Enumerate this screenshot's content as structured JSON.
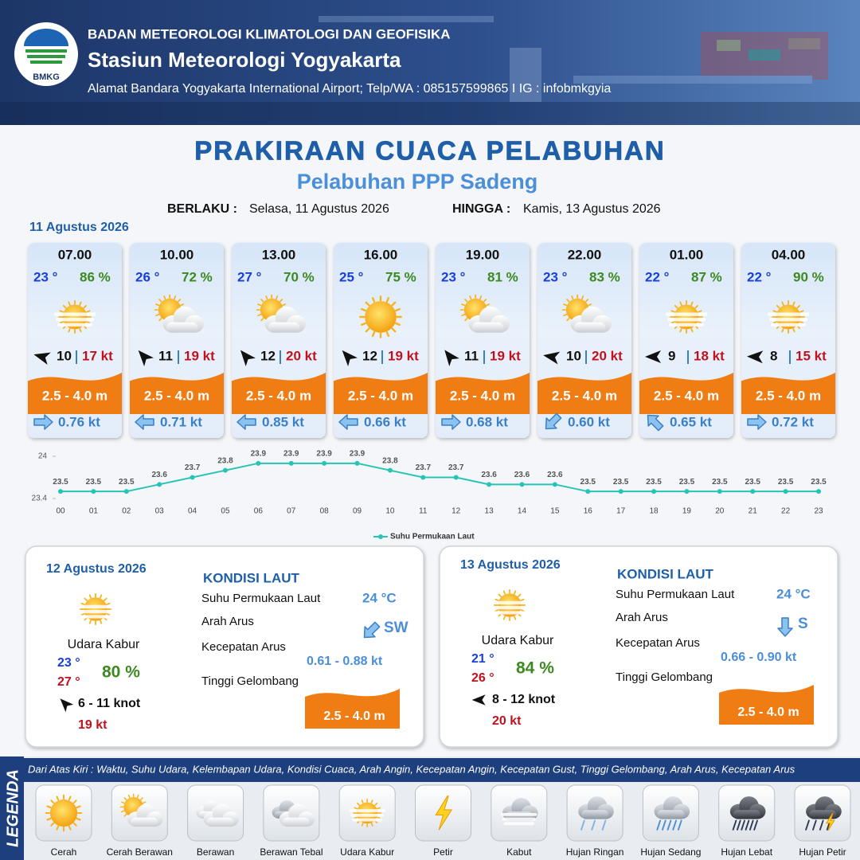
{
  "header": {
    "logo": "BMKG",
    "agency": "BADAN METEOROLOGI KLIMATOLOGI DAN GEOFISIKA",
    "station": "Stasiun Meteorologi Yogyakarta",
    "address": "Alamat Bandara Yogyakarta International Airport; Telp/WA : 085157599865 I IG : infobmkgyia"
  },
  "title": "PRAKIRAAN CUACA PELABUHAN",
  "subtitle": "Pelabuhan PPP Sadeng",
  "validity": {
    "from_label": "BERLAKU :",
    "from": "Selasa, 11 Agustus 2026",
    "to_label": "HINGGA :",
    "to": "Kamis, 13 Agustus 2026"
  },
  "day1": {
    "date": "11 Agustus 2026",
    "forecasts": [
      {
        "time": "07.00",
        "temperature": "23 °",
        "humidity": "86 %",
        "condition": "Udara Kabur",
        "wind_speed": 10,
        "gust": "17 kt",
        "wave": "2.5 - 4.0 m",
        "current": "0.76 kt"
      },
      {
        "time": "10.00",
        "temperature": "26 °",
        "humidity": "72 %",
        "condition": "Cerah Berawan",
        "wind_speed": 11,
        "gust": "19 kt",
        "wave": "2.5 - 4.0 m",
        "current": "0.71 kt"
      },
      {
        "time": "13.00",
        "temperature": "27 °",
        "humidity": "70 %",
        "condition": "Cerah Berawan",
        "wind_speed": 12,
        "gust": "20 kt",
        "wave": "2.5 - 4.0 m",
        "current": "0.85 kt"
      },
      {
        "time": "16.00",
        "temperature": "25 °",
        "humidity": "75 %",
        "condition": "Cerah",
        "wind_speed": 12,
        "gust": "19 kt",
        "wave": "2.5 - 4.0 m",
        "current": "0.66 kt"
      },
      {
        "time": "19.00",
        "temperature": "23 °",
        "humidity": "81 %",
        "condition": "Cerah Berawan",
        "wind_speed": 11,
        "gust": "19 kt",
        "wave": "2.5 - 4.0 m",
        "current": "0.68 kt"
      },
      {
        "time": "22.00",
        "temperature": "23 °",
        "humidity": "83 %",
        "condition": "Cerah Berawan",
        "wind_speed": 10,
        "gust": "20 kt",
        "wave": "2.5 - 4.0 m",
        "current": "0.60 kt"
      },
      {
        "time": "01.00",
        "temperature": "22 °",
        "humidity": "87 %",
        "condition": "Udara Kabur",
        "wind_speed": 9,
        "gust": "18 kt",
        "wave": "2.5 - 4.0 m",
        "current": "0.65 kt"
      },
      {
        "time": "04.00",
        "temperature": "22 °",
        "humidity": "90 %",
        "condition": "Udara Kabur",
        "wind_speed": 8,
        "gust": "15 kt",
        "wave": "2.5 - 4.0 m",
        "current": "0.72 kt"
      }
    ]
  },
  "chart_data": {
    "type": "line",
    "categories": [
      "00",
      "01",
      "02",
      "03",
      "04",
      "05",
      "06",
      "07",
      "08",
      "09",
      "10",
      "11",
      "12",
      "13",
      "14",
      "15",
      "16",
      "17",
      "18",
      "19",
      "20",
      "21",
      "22",
      "23"
    ],
    "series": [
      {
        "name": "Suhu Permukaan Laut",
        "color": "#27c4b5",
        "values": [
          23.5,
          23.5,
          23.5,
          23.6,
          23.7,
          23.8,
          23.9,
          23.9,
          23.9,
          23.9,
          23.8,
          23.7,
          23.7,
          23.6,
          23.6,
          23.6,
          23.5,
          23.5,
          23.5,
          23.5,
          23.5,
          23.5,
          23.5,
          23.5
        ]
      }
    ],
    "ylim": [
      23.4,
      24
    ],
    "yticks": [
      23.4,
      24
    ],
    "legend": "bottom"
  },
  "outlook": [
    {
      "date": "12 Agustus 2026",
      "condition": "Udara Kabur",
      "temp_min": "23 °",
      "temp_max": "27 °",
      "humidity": "80 %",
      "wind": "6  - 11 knot",
      "gust": "19 kt",
      "sea": {
        "heading": "KONDISI LAUT",
        "labels": [
          "Suhu Permukaan Laut",
          "Arah Arus",
          "Kecepatan Arus",
          "Tinggi Gelombang"
        ],
        "temperature": "24 °C",
        "current_direction": "SW",
        "current_speed": "0.61 - 0.88 kt",
        "wave": "2.5 - 4.0 m"
      }
    },
    {
      "date": "13 Agustus 2026",
      "condition": "Udara Kabur",
      "temp_min": "21 °",
      "temp_max": "26 °",
      "humidity": "84 %",
      "wind": "8 - 12 knot",
      "gust": "20 kt",
      "sea": {
        "heading": "KONDISI LAUT",
        "labels": [
          "Suhu Permukaan Laut",
          "Arah Arus",
          "Kecepatan Arus",
          "Tinggi Gelombang"
        ],
        "temperature": "24 °C",
        "current_direction": "S",
        "current_speed": "0.66 - 0.90 kt",
        "wave": "2.5 - 4.0 m"
      }
    }
  ],
  "legend": {
    "title": "LEGENDA",
    "description": "Dari Atas Kiri : Waktu, Suhu Udara, Kelembapan Udara, Kondisi Cuaca, Arah Angin, Kecepatan Angin, Kecepatan Gust, Tinggi Gelombang, Arah Arus, Kecepatan Arus",
    "items": [
      "Cerah",
      "Cerah Berawan",
      "Berawan",
      "Berawan Tebal",
      "Udara Kabur",
      "Petir",
      "Kabut",
      "Hujan Ringan",
      "Hujan Sedang",
      "Hujan Lebat",
      "Hujan Petir"
    ]
  }
}
